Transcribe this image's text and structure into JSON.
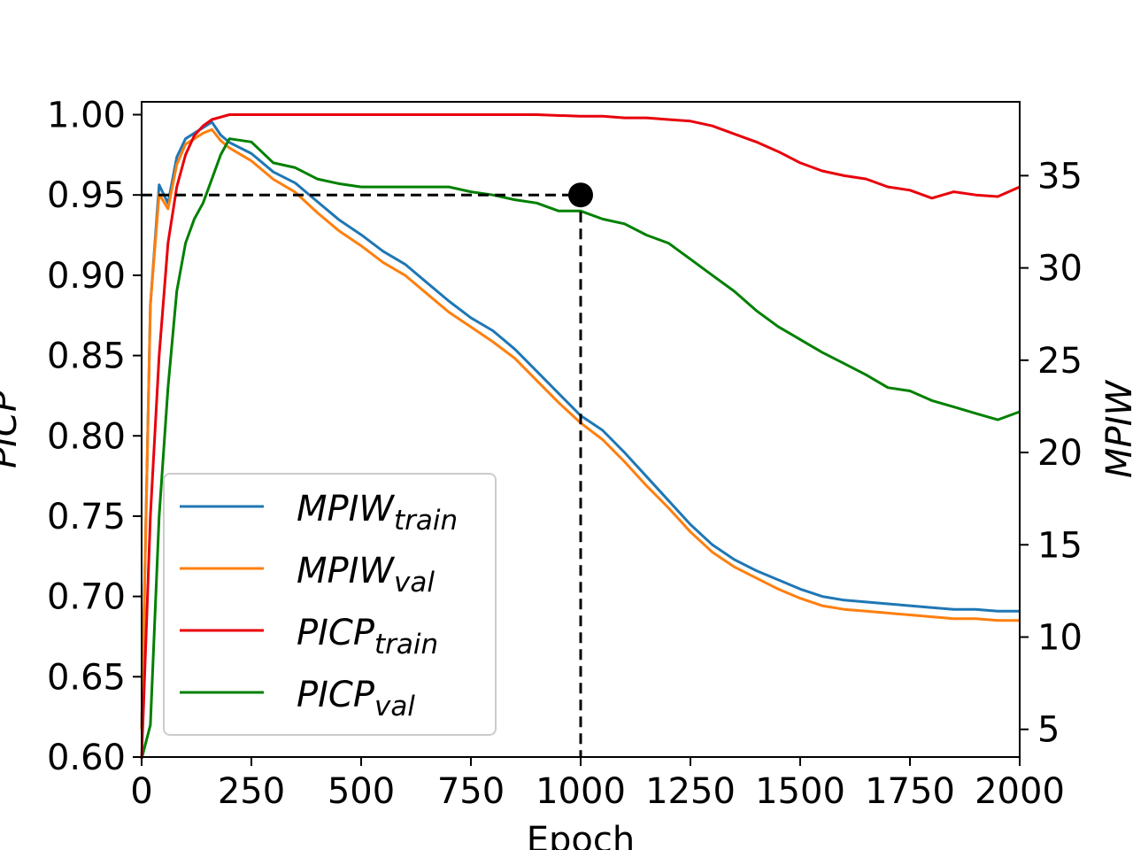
{
  "chart_data": {
    "type": "line",
    "xlabel": "Epoch",
    "ylabel_left": "PICP",
    "ylabel_right": "MPIW",
    "xlim": [
      0,
      2000
    ],
    "ylim_left": [
      0.6,
      1.008
    ],
    "ylim_right": [
      3.5,
      39.0
    ],
    "x_ticks": [
      "0",
      "250",
      "500",
      "750",
      "1000",
      "1250",
      "1500",
      "1750",
      "2000"
    ],
    "y_ticks_left": [
      "0.60",
      "0.65",
      "0.70",
      "0.75",
      "0.80",
      "0.85",
      "0.90",
      "0.95",
      "1.00"
    ],
    "y_ticks_right": [
      "5",
      "10",
      "15",
      "20",
      "25",
      "30",
      "35"
    ],
    "legend_position": "lower-left",
    "grid": false,
    "annotation": {
      "point": {
        "epoch": 1000,
        "picp": 0.95
      },
      "dashed_reference_lines": true,
      "color": "#000000"
    },
    "series": [
      {
        "name": "MPIW",
        "subscript": "train",
        "axis": "right",
        "color": "#1f77b4",
        "x": [
          0,
          20,
          40,
          60,
          80,
          100,
          120,
          140,
          160,
          180,
          200,
          250,
          300,
          350,
          400,
          450,
          500,
          550,
          600,
          650,
          700,
          750,
          800,
          850,
          900,
          950,
          1000,
          1050,
          1100,
          1150,
          1200,
          1250,
          1300,
          1350,
          1400,
          1450,
          1500,
          1550,
          1600,
          1650,
          1700,
          1750,
          1800,
          1850,
          1900,
          1950,
          2000
        ],
        "y": [
          5.0,
          28.0,
          34.5,
          33.5,
          36.0,
          37.0,
          37.3,
          37.6,
          37.9,
          37.2,
          36.8,
          36.2,
          35.2,
          34.6,
          33.6,
          32.6,
          31.8,
          30.9,
          30.2,
          29.2,
          28.2,
          27.3,
          26.6,
          25.6,
          24.4,
          23.2,
          22.0,
          21.2,
          20.0,
          18.7,
          17.4,
          16.1,
          15.0,
          14.2,
          13.6,
          13.1,
          12.6,
          12.2,
          12.0,
          11.9,
          11.8,
          11.7,
          11.6,
          11.5,
          11.5,
          11.4,
          11.4
        ]
      },
      {
        "name": "MPIW",
        "subscript": "val",
        "axis": "right",
        "color": "#ff7f0e",
        "x": [
          0,
          20,
          40,
          60,
          80,
          100,
          120,
          140,
          160,
          180,
          200,
          250,
          300,
          350,
          400,
          450,
          500,
          550,
          600,
          650,
          700,
          750,
          800,
          850,
          900,
          950,
          1000,
          1050,
          1100,
          1150,
          1200,
          1250,
          1300,
          1350,
          1400,
          1450,
          1500,
          1550,
          1600,
          1650,
          1700,
          1750,
          1800,
          1850,
          1900,
          1950,
          2000
        ],
        "y": [
          5.0,
          28.0,
          34.0,
          33.2,
          35.6,
          36.7,
          37.0,
          37.3,
          37.5,
          36.9,
          36.5,
          35.8,
          34.8,
          34.1,
          33.0,
          32.0,
          31.2,
          30.3,
          29.6,
          28.6,
          27.6,
          26.8,
          26.0,
          25.1,
          23.9,
          22.7,
          21.6,
          20.7,
          19.5,
          18.2,
          17.0,
          15.7,
          14.6,
          13.8,
          13.2,
          12.6,
          12.1,
          11.7,
          11.5,
          11.4,
          11.3,
          11.2,
          11.1,
          11.0,
          11.0,
          10.9,
          10.9
        ]
      },
      {
        "name": "PICP",
        "subscript": "train",
        "axis": "left",
        "color": "#e8000b",
        "x": [
          0,
          20,
          40,
          60,
          80,
          100,
          120,
          140,
          160,
          200,
          250,
          300,
          400,
          500,
          600,
          700,
          800,
          900,
          1000,
          1050,
          1100,
          1150,
          1200,
          1250,
          1300,
          1350,
          1400,
          1450,
          1500,
          1550,
          1600,
          1650,
          1700,
          1750,
          1800,
          1850,
          1900,
          1950,
          2000
        ],
        "y": [
          0.58,
          0.75,
          0.85,
          0.92,
          0.955,
          0.975,
          0.987,
          0.993,
          0.997,
          1.0,
          1.0,
          1.0,
          1.0,
          1.0,
          1.0,
          1.0,
          1.0,
          1.0,
          0.999,
          0.999,
          0.998,
          0.998,
          0.997,
          0.996,
          0.993,
          0.988,
          0.983,
          0.977,
          0.97,
          0.965,
          0.962,
          0.96,
          0.955,
          0.953,
          0.948,
          0.952,
          0.95,
          0.949,
          0.955
        ]
      },
      {
        "name": "PICP",
        "subscript": "val",
        "axis": "left",
        "color": "#008000",
        "x": [
          0,
          20,
          40,
          60,
          80,
          100,
          120,
          140,
          160,
          180,
          200,
          250,
          300,
          350,
          400,
          450,
          500,
          550,
          600,
          650,
          700,
          750,
          800,
          850,
          900,
          950,
          1000,
          1050,
          1100,
          1150,
          1200,
          1250,
          1300,
          1350,
          1400,
          1450,
          1500,
          1550,
          1600,
          1650,
          1700,
          1750,
          1800,
          1850,
          1900,
          1950,
          2000
        ],
        "y": [
          0.58,
          0.62,
          0.75,
          0.83,
          0.89,
          0.92,
          0.935,
          0.945,
          0.96,
          0.975,
          0.985,
          0.983,
          0.97,
          0.967,
          0.96,
          0.957,
          0.955,
          0.955,
          0.955,
          0.955,
          0.955,
          0.952,
          0.95,
          0.947,
          0.945,
          0.94,
          0.94,
          0.935,
          0.932,
          0.925,
          0.92,
          0.91,
          0.9,
          0.89,
          0.878,
          0.868,
          0.86,
          0.852,
          0.845,
          0.838,
          0.83,
          0.828,
          0.822,
          0.818,
          0.814,
          0.81,
          0.815
        ]
      }
    ]
  }
}
